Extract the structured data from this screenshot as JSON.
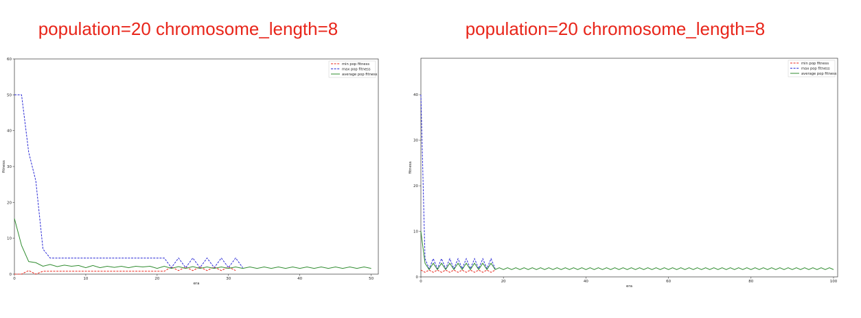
{
  "chart_data": [
    {
      "type": "line",
      "title": "population=20 chromosome_length=8",
      "xlabel": "era",
      "ylabel": "fitness",
      "xlim": [
        0,
        51
      ],
      "ylim": [
        0,
        60
      ],
      "xticks": [
        0,
        10,
        20,
        30,
        40,
        50
      ],
      "yticks": [
        0,
        10,
        20,
        30,
        40,
        50,
        60
      ],
      "legend_position": "top-right",
      "series": [
        {
          "name": "min pop fitness",
          "color": "#e8251a",
          "style": "dashed",
          "x": [
            0,
            1,
            2,
            3,
            4,
            5,
            6,
            7,
            8,
            9,
            10,
            11,
            12,
            13,
            14,
            15,
            16,
            17,
            18,
            19,
            20,
            21,
            22,
            23,
            24,
            25,
            26,
            27,
            28,
            29,
            30,
            31
          ],
          "y": [
            0,
            0,
            1,
            0,
            0.8,
            0.8,
            0.8,
            0.8,
            0.8,
            0.8,
            0.8,
            0.8,
            0.8,
            0.8,
            0.8,
            0.8,
            0.8,
            0.8,
            0.8,
            0.8,
            0.8,
            0.8,
            2,
            1,
            2,
            1,
            2,
            1,
            2,
            1,
            2,
            1
          ]
        },
        {
          "name": "max pop fitness",
          "color": "#2b2bd6",
          "style": "dashed",
          "x": [
            0,
            1,
            2,
            3,
            4,
            5,
            6,
            7,
            8,
            9,
            10,
            11,
            12,
            13,
            14,
            15,
            16,
            17,
            18,
            19,
            20,
            21,
            22,
            23,
            24,
            25,
            26,
            27,
            28,
            29,
            30,
            31,
            32
          ],
          "y": [
            50,
            50,
            34,
            26,
            7,
            4.5,
            4.5,
            4.5,
            4.5,
            4.5,
            4.5,
            4.5,
            4.5,
            4.5,
            4.5,
            4.5,
            4.5,
            4.5,
            4.5,
            4.5,
            4.5,
            4.5,
            1.8,
            4.5,
            1.8,
            4.5,
            1.8,
            4.5,
            1.8,
            4.5,
            1.8,
            4.5,
            1.8
          ]
        },
        {
          "name": "average pop fitness",
          "color": "#2e8b2e",
          "style": "solid",
          "x": [
            0,
            1,
            2,
            3,
            4,
            5,
            6,
            7,
            8,
            9,
            10,
            11,
            12,
            13,
            14,
            15,
            16,
            17,
            18,
            19,
            20,
            21,
            22,
            23,
            24,
            25,
            26,
            27,
            28,
            29,
            30,
            31,
            32,
            33,
            34,
            35,
            36,
            37,
            38,
            39,
            40,
            41,
            42,
            43,
            44,
            45,
            46,
            47,
            48,
            49,
            50
          ],
          "y": [
            15.5,
            8,
            3.5,
            3.2,
            2.2,
            2.7,
            2.1,
            2.5,
            2.2,
            2.4,
            1.8,
            2.4,
            1.8,
            2.2,
            1.9,
            2.2,
            1.8,
            2.2,
            2,
            2.2,
            1.6,
            2.2,
            1.6,
            2.1,
            1.6,
            2.1,
            1.6,
            2,
            1.6,
            2,
            1.6,
            2,
            1.6,
            2,
            1.6,
            2,
            1.6,
            2,
            1.6,
            2,
            1.6,
            2,
            1.6,
            2,
            1.6,
            2,
            1.6,
            2,
            1.6,
            2,
            1.6
          ]
        }
      ]
    },
    {
      "type": "line",
      "title": "population=20 chromosome_length=8",
      "xlabel": "era",
      "ylabel": "fitness",
      "xlim": [
        0,
        101
      ],
      "ylim": [
        0,
        48
      ],
      "xticks": [
        0,
        20,
        40,
        60,
        80,
        100
      ],
      "yticks": [
        0,
        10,
        20,
        30,
        40
      ],
      "legend_position": "top-right",
      "series": [
        {
          "name": "min pop fitness",
          "color": "#e8251a",
          "style": "dashed",
          "x": [
            0,
            1,
            2,
            3,
            4,
            5,
            6,
            7,
            8,
            9,
            10,
            11,
            12,
            13,
            14,
            15,
            16,
            17,
            18
          ],
          "y": [
            1.5,
            1,
            1.5,
            1,
            1.5,
            1,
            1.5,
            1,
            1.5,
            1,
            1.5,
            1,
            1.5,
            1,
            1.5,
            1,
            1.5,
            1,
            1.5
          ]
        },
        {
          "name": "max pop fitness",
          "color": "#2b2bd6",
          "style": "dashed",
          "x": [
            0,
            1,
            2,
            3,
            4,
            5,
            6,
            7,
            8,
            9,
            10,
            11,
            12,
            13,
            14,
            15,
            16,
            17,
            18
          ],
          "y": [
            40,
            4,
            1.8,
            4,
            1.8,
            4,
            1.8,
            4,
            1.8,
            4,
            1.8,
            4,
            1.8,
            4,
            1.8,
            4,
            1.8,
            4,
            1.8
          ]
        },
        {
          "name": "average pop fitness",
          "color": "#2e8b2e",
          "style": "solid",
          "x": [
            0,
            1,
            2,
            3,
            4,
            5,
            6,
            7,
            8,
            9,
            10,
            11,
            12,
            13,
            14,
            15,
            16,
            17,
            18,
            19,
            20,
            21,
            22,
            23,
            24,
            25,
            26,
            27,
            28,
            29,
            30,
            31,
            32,
            33,
            34,
            35,
            36,
            37,
            38,
            39,
            40,
            41,
            42,
            43,
            44,
            45,
            46,
            47,
            48,
            49,
            50,
            51,
            52,
            53,
            54,
            55,
            56,
            57,
            58,
            59,
            60,
            61,
            62,
            63,
            64,
            65,
            66,
            67,
            68,
            69,
            70,
            71,
            72,
            73,
            74,
            75,
            76,
            77,
            78,
            79,
            80,
            81,
            82,
            83,
            84,
            85,
            86,
            87,
            88,
            89,
            90,
            91,
            92,
            93,
            94,
            95,
            96,
            97,
            98,
            99,
            100
          ],
          "y": [
            10,
            3,
            1.6,
            3,
            1.6,
            3,
            1.6,
            3,
            1.6,
            3,
            1.6,
            3,
            1.6,
            3,
            1.6,
            3,
            1.6,
            3,
            1.6,
            2,
            1.6,
            2,
            1.6,
            2,
            1.6,
            2,
            1.6,
            2,
            1.6,
            2,
            1.6,
            2,
            1.6,
            2,
            1.6,
            2,
            1.6,
            2,
            1.6,
            2,
            1.6,
            2,
            1.6,
            2,
            1.6,
            2,
            1.6,
            2,
            1.6,
            2,
            1.6,
            2,
            1.6,
            2,
            1.6,
            2,
            1.6,
            2,
            1.6,
            2,
            1.6,
            2,
            1.6,
            2,
            1.6,
            2,
            1.6,
            2,
            1.6,
            2,
            1.6,
            2,
            1.6,
            2,
            1.6,
            2,
            1.6,
            2,
            1.6,
            2,
            1.6,
            2,
            1.6,
            2,
            1.6,
            2,
            1.6,
            2,
            1.6,
            2,
            1.6,
            2,
            1.6,
            2,
            1.6,
            2,
            1.6,
            2,
            1.6,
            2,
            1.6
          ]
        }
      ]
    }
  ]
}
